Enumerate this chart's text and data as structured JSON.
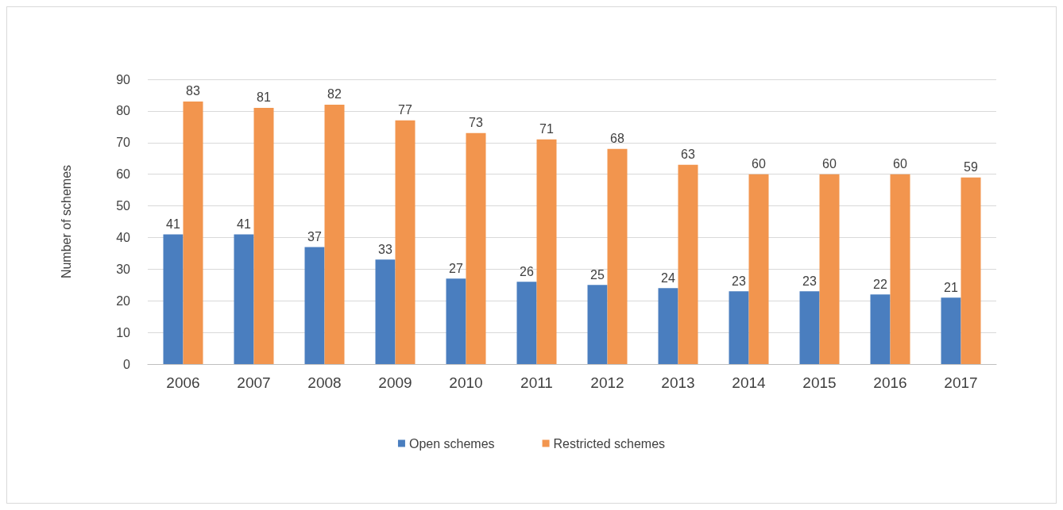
{
  "chart_data": {
    "type": "bar",
    "ylabel": "Number of schemes",
    "categories": [
      "2006",
      "2007",
      "2008",
      "2009",
      "2010",
      "2011",
      "2012",
      "2013",
      "2014",
      "2015",
      "2016",
      "2017"
    ],
    "series": [
      {
        "name": "Open schemes",
        "color": "#4a7ebf",
        "values": [
          41,
          41,
          37,
          33,
          27,
          26,
          25,
          24,
          23,
          23,
          22,
          21
        ]
      },
      {
        "name": "Restricted schemes",
        "color": "#f2954e",
        "values": [
          83,
          81,
          82,
          77,
          73,
          71,
          68,
          63,
          60,
          60,
          60,
          59
        ]
      }
    ],
    "ylim": [
      0,
      90
    ],
    "yticks": [
      0,
      10,
      20,
      30,
      40,
      50,
      60,
      70,
      80,
      90
    ],
    "grid": "y",
    "legend": "bottom",
    "data_labels": true
  }
}
